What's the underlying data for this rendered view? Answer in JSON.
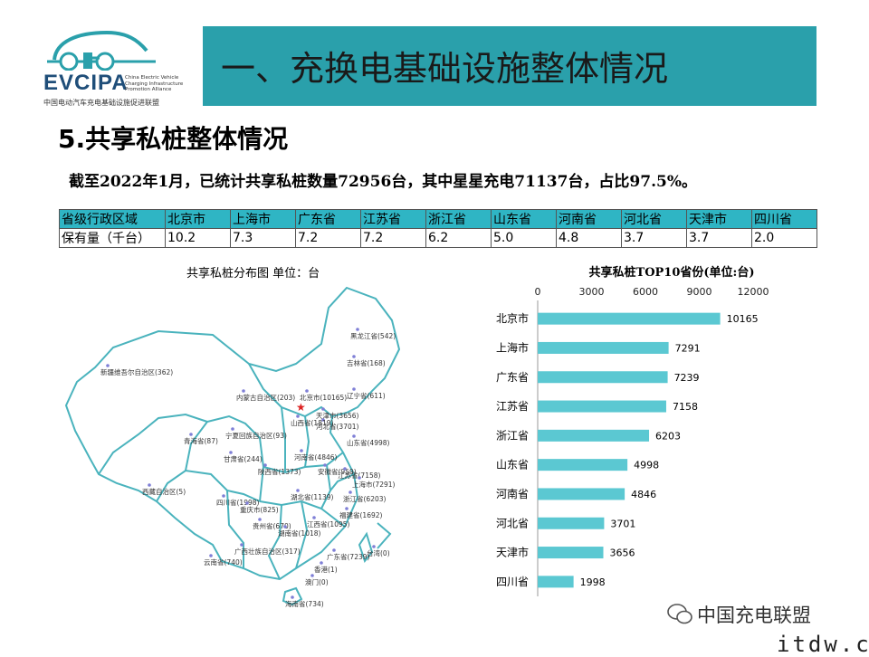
{
  "logo": {
    "brand": "EVCIPA",
    "en_lines": [
      "China Electric Vehicle",
      "Charging Infrastructure",
      "Promotion Alliance"
    ],
    "cn": "中国电动汽车充电基础设施促进联盟"
  },
  "header": {
    "title": "一、充换电基础设施整体情况"
  },
  "section": {
    "title": "5.共享私桩整体情况"
  },
  "summary": "截至2022年1月，已统计共享私桩数量72956台，其中星星充电71137台，占比97.5%。",
  "table": {
    "header_label": "省级行政区域",
    "value_label": "保有量（千台）",
    "provinces": [
      "北京市",
      "上海市",
      "广东省",
      "江苏省",
      "浙江省",
      "山东省",
      "河南省",
      "河北省",
      "天津市",
      "四川省"
    ],
    "values": [
      "10.2",
      "7.3",
      "7.2",
      "7.2",
      "6.2",
      "5.0",
      "4.8",
      "3.7",
      "3.7",
      "2.0"
    ]
  },
  "map": {
    "title": "共享私桩分布图  单位：台",
    "labels": [
      "黑龙江省(542)",
      "吉林省(168)",
      "新疆维吾尔自治区(362)",
      "内蒙古自治区(203)",
      "北京市(10165)",
      "辽宁省(611)",
      "天津市(3656)",
      "河北省(3701)",
      "山西省(1819)",
      "宁夏回族自治区(93)",
      "青海省(87)",
      "山东省(4998)",
      "甘肃省(244)",
      "河南省(4846)",
      "陕西省(1373)",
      "安徽省(959)",
      "江苏省(7158)",
      "上海市(7291)",
      "西藏自治区(5)",
      "四川省(1998)",
      "湖北省(1139)",
      "浙江省(6203)",
      "重庆市(825)",
      "江西省(1095)",
      "福建省(1692)",
      "贵州省(670)",
      "湖南省(1018)",
      "广西壮族自治区(317)",
      "广东省(7239)",
      "台湾(0)",
      "云南省(740)",
      "香港(1)",
      "澳门(0)",
      "海南省(734)"
    ]
  },
  "chart_data": {
    "type": "bar",
    "orientation": "horizontal",
    "title": "共享私桩TOP10省份(单位:台)",
    "categories": [
      "北京市",
      "上海市",
      "广东省",
      "江苏省",
      "浙江省",
      "山东省",
      "河南省",
      "河北省",
      "天津市",
      "四川省"
    ],
    "values": [
      10165,
      7291,
      7239,
      7158,
      6203,
      4998,
      4846,
      3701,
      3656,
      1998
    ],
    "xlim": [
      0,
      12000
    ],
    "xticks": [
      0,
      3000,
      6000,
      9000,
      12000
    ],
    "xlabel": "",
    "ylabel": "",
    "bar_color": "#5bc8d2",
    "axis_position": "top",
    "grid": false,
    "legend": "none"
  },
  "watermark": {
    "text": "中国充电联盟",
    "url": "itdw.cn"
  },
  "colors": {
    "banner": "#2aa0ab",
    "table_header": "#2fb5c4",
    "bar": "#5bc8d2",
    "map_line": "#4ab3bd",
    "brand": "#1f4e79"
  }
}
